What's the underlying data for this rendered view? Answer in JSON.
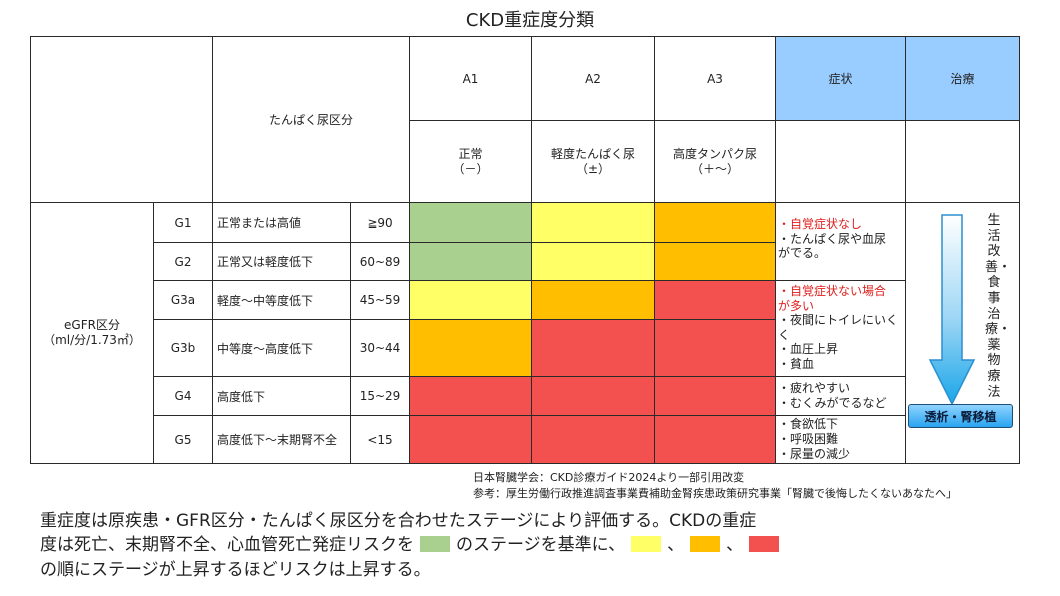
{
  "title": "CKD重症度分類",
  "header": {
    "protein_label": "たんぱく尿区分",
    "a1": {
      "code": "A1",
      "desc": "正常",
      "sub": "（－）"
    },
    "a2": {
      "code": "A2",
      "desc": "軽度たんぱく尿",
      "sub": "（±）"
    },
    "a3": {
      "code": "A3",
      "desc": "高度タンパク尿",
      "sub": "（＋～）"
    },
    "symptoms": "症状",
    "treatment": "治療"
  },
  "egfr": {
    "label": "eGFR区分",
    "unit": "（ml/分/1.73㎡）"
  },
  "rows": [
    {
      "grade": "G1",
      "desc": "正常または高値",
      "range": "≧90"
    },
    {
      "grade": "G2",
      "desc": "正常又は軽度低下",
      "range": "60~89"
    },
    {
      "grade": "G3a",
      "desc": "軽度～中等度低下",
      "range": "45~59"
    },
    {
      "grade": "G3b",
      "desc": "中等度～高度低下",
      "range": "30~44"
    },
    {
      "grade": "G4",
      "desc": "高度低下",
      "range": "15~29"
    },
    {
      "grade": "G5",
      "desc": "高度低下～末期腎不全",
      "range": "<15"
    }
  ],
  "symptoms": {
    "group1": {
      "line1": "・自覚症状なし",
      "line2": "・たんぱく尿や血尿",
      "line3": "がでる。"
    },
    "group2": {
      "line1": "・自覚症状ない場合",
      "line2": "が多い",
      "line3": "・夜間にトイレにいく",
      "line4": "く",
      "line5": "・血圧上昇",
      "line6": "・貧血"
    },
    "group3": {
      "line1": "・疲れやすい",
      "line2": "・むくみがでるなど"
    },
    "group4": {
      "line1": "・食欲低下",
      "line2": "・呼吸困難",
      "line3": "・尿量の減少"
    }
  },
  "treatment": {
    "lifestyle": "生活改善・食事治療・薬物療法",
    "dialysis": "透析・腎移植"
  },
  "colors": {
    "green": "#a9d08e",
    "yellow": "#ffff66",
    "orange": "#ffbf00",
    "red": "#f2514f",
    "header_blue": "#99ccff"
  },
  "footnotes": {
    "source": "日本腎臓学会：CKD診療ガイド2024より一部引用改変",
    "reference": "参考：厚生労働行政推進調査事業費補助金腎疾患政策研究事業「腎臓で後悔したくないあなたへ」"
  },
  "description": {
    "line1": "重症度は原疾患・GFR区分・たんぱく尿区分を合わせたステージにより評価する。CKDの重症",
    "line2_a": "度は死亡、末期腎不全、心血管死亡発症リスクを",
    "line2_b": "のステージを基準に、",
    "sep1": "、",
    "sep2": "、",
    "line3": "の順にステージが上昇するほどリスクは上昇する。"
  }
}
